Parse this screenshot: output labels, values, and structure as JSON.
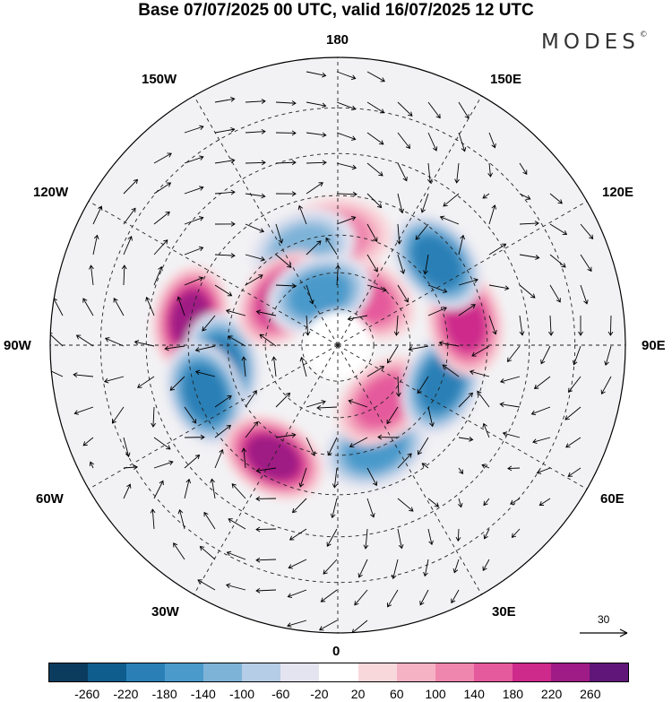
{
  "header": {
    "title": "Base 07/07/2025 00 UTC, valid 16/07/2025 12 UTC",
    "brand": "MODES",
    "brand_mark": "©"
  },
  "map": {
    "projection": "north-polar-stereographic",
    "longitude_labels": {
      "top": "180",
      "top_left": "150W",
      "top_right": "150E",
      "upper_left": "120W",
      "upper_right": "120E",
      "left": "90W",
      "right": "90E",
      "lower_left": "60W",
      "lower_right": "60E",
      "bottom_left": "30W",
      "bottom_right": "30E",
      "bottom": "0"
    },
    "anomaly_centers": [
      {
        "lon": -100,
        "lat": 50,
        "value": 240
      },
      {
        "lon": -80,
        "lat": 58,
        "value": -180
      },
      {
        "lon": -70,
        "lat": 52,
        "value": -200
      },
      {
        "lon": -30,
        "lat": 55,
        "value": 220
      },
      {
        "lon": 20,
        "lat": 60,
        "value": -140
      },
      {
        "lon": 40,
        "lat": 70,
        "value": 160
      },
      {
        "lon": 70,
        "lat": 60,
        "value": -180
      },
      {
        "lon": 100,
        "lat": 55,
        "value": 200
      },
      {
        "lon": 130,
        "lat": 55,
        "value": -180
      },
      {
        "lon": 150,
        "lat": 75,
        "value": 160
      },
      {
        "lon": 180,
        "lat": 60,
        "value": 120
      },
      {
        "lon": -160,
        "lat": 62,
        "value": -120
      },
      {
        "lon": -130,
        "lat": 70,
        "value": 180
      },
      {
        "lon": -160,
        "lat": 75,
        "value": -140
      }
    ],
    "wind_reference": {
      "label": "30"
    }
  },
  "colorbar": {
    "colors": [
      "#0b3c5d",
      "#0f5d8c",
      "#2a80b6",
      "#4a9acb",
      "#7eb3d8",
      "#b5cde6",
      "#e4e4f0",
      "#ffffff",
      "#f9d8dc",
      "#f5b2c4",
      "#ef86ad",
      "#e55a9c",
      "#cd2a8c",
      "#9f1b85",
      "#5f1678"
    ],
    "tick_labels": [
      "-260",
      "-220",
      "-180",
      "-140",
      "-100",
      "-60",
      "-20",
      "20",
      "60",
      "100",
      "140",
      "180",
      "220",
      "260"
    ]
  }
}
